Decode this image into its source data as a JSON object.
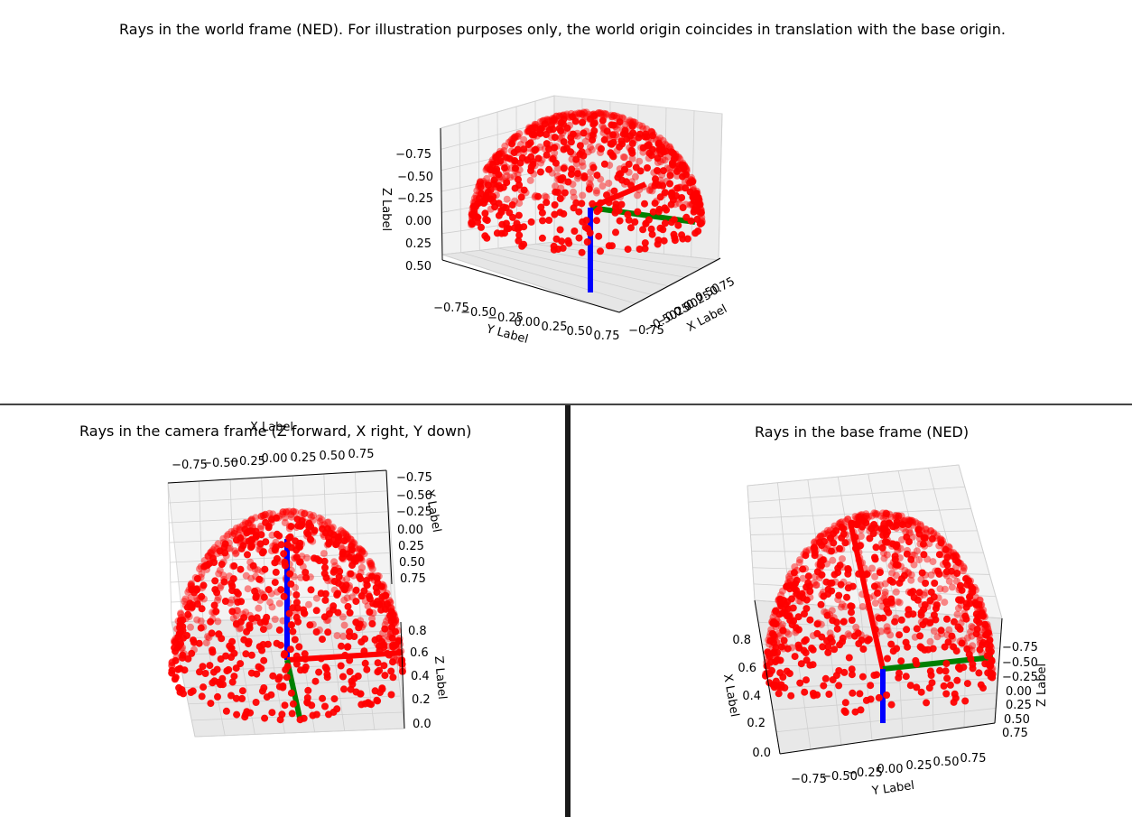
{
  "chart_data": [
    {
      "type": "scatter",
      "subtype": "3d-scatter-hemisphere",
      "title": "Rays in the world frame (NED). For illustration purposes only, the world origin coincides in translation with the base origin.",
      "xlabel": "X Label",
      "ylabel": "Y Label",
      "zlabel": "Z Label",
      "x_ticks": [
        "−0.75",
        "−0.50",
        "−0.25",
        "0.00",
        "0.25",
        "0.50",
        "0.75"
      ],
      "y_ticks": [
        "−0.75",
        "−0.50",
        "−0.25",
        "0.00",
        "0.25",
        "0.50",
        "0.75"
      ],
      "z_ticks": [
        "−0.75",
        "−0.50",
        "−0.25",
        "0.00",
        "0.25",
        "0.50"
      ],
      "xlim": [
        -0.75,
        0.75
      ],
      "ylim": [
        -0.75,
        0.75
      ],
      "zlim": [
        -0.9,
        0.6
      ],
      "z_inverted": true,
      "point_color": "#ff0000",
      "axes_arrows": [
        {
          "name": "x",
          "color": "#ff0000"
        },
        {
          "name": "y",
          "color": "#008000"
        },
        {
          "name": "z",
          "color": "#0000ff"
        }
      ],
      "grid": true
    },
    {
      "type": "scatter",
      "subtype": "3d-scatter-hemisphere",
      "title": "Rays in the camera frame (Z forward, X right, Y down)",
      "xlabel": "X Label",
      "ylabel": "Y Label",
      "zlabel": "Z Label",
      "x_ticks": [
        "−0.75",
        "−0.50",
        "−0.25",
        "0.00",
        "0.25",
        "0.50",
        "0.75"
      ],
      "y_ticks": [
        "−0.75",
        "−0.50",
        "−0.25",
        "0.00",
        "0.25",
        "0.50",
        "0.75"
      ],
      "z_ticks": [
        "0.0",
        "0.2",
        "0.4",
        "0.6",
        "0.8"
      ],
      "xlim": [
        -0.75,
        0.75
      ],
      "ylim": [
        -0.75,
        0.75
      ],
      "zlim": [
        0.0,
        0.9
      ],
      "point_color": "#ff0000",
      "axes_arrows": [
        {
          "name": "x",
          "color": "#ff0000"
        },
        {
          "name": "y",
          "color": "#008000"
        },
        {
          "name": "z",
          "color": "#0000ff"
        }
      ],
      "grid": true
    },
    {
      "type": "scatter",
      "subtype": "3d-scatter-hemisphere",
      "title": "Rays in the base frame (NED)",
      "xlabel": "X Label",
      "ylabel": "Y Label",
      "zlabel": "Z Label",
      "x_ticks": [
        "0.0",
        "0.2",
        "0.4",
        "0.6",
        "0.8"
      ],
      "y_ticks": [
        "−0.75",
        "−0.50",
        "−0.25",
        "0.00",
        "0.25",
        "0.50",
        "0.75"
      ],
      "z_ticks": [
        "−0.75",
        "−0.50",
        "−0.25",
        "0.00",
        "0.25",
        "0.50",
        "0.75"
      ],
      "xlim": [
        0.0,
        0.9
      ],
      "ylim": [
        -0.75,
        0.75
      ],
      "zlim": [
        -0.75,
        0.75
      ],
      "z_inverted": true,
      "point_color": "#ff0000",
      "axes_arrows": [
        {
          "name": "x",
          "color": "#ff0000"
        },
        {
          "name": "y",
          "color": "#008000"
        },
        {
          "name": "z",
          "color": "#0000ff"
        }
      ],
      "grid": true
    }
  ]
}
